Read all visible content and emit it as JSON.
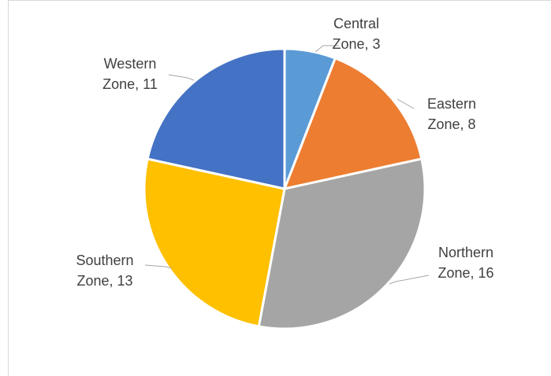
{
  "chart_data": {
    "type": "pie",
    "title": "",
    "categories": [
      "Central Zone",
      "Eastern Zone",
      "Northern Zone",
      "Southern Zone",
      "Western Zone"
    ],
    "values": [
      3,
      8,
      16,
      13,
      11
    ],
    "labels": [
      [
        "Central",
        "Zone, 3"
      ],
      [
        "Eastern",
        "Zone, 8"
      ],
      [
        "Northern",
        "Zone, 16"
      ],
      [
        "Southern",
        "Zone, 13"
      ],
      [
        "Western",
        "Zone, 11"
      ]
    ],
    "colors": [
      "#5b9bd5",
      "#ed7d31",
      "#a5a5a5",
      "#ffc000",
      "#4472c4"
    ],
    "start_angle_deg": 0,
    "direction": "clockwise",
    "legend": "none",
    "data_labels": "outside-with-leader-lines"
  }
}
